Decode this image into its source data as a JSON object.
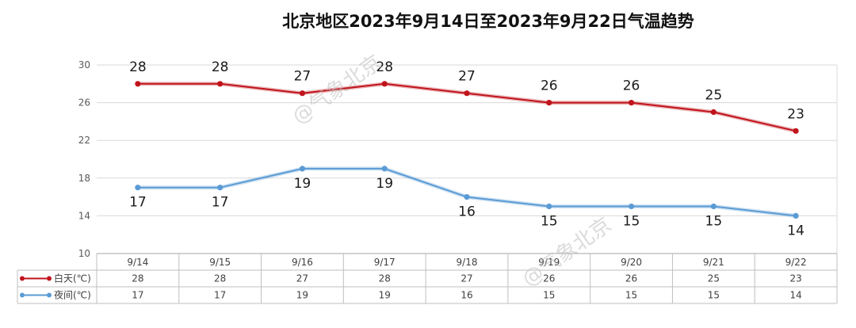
{
  "chart_data": {
    "type": "line",
    "title": "北京地区2023年9月14日至2023年9月22日气温趋势",
    "categories": [
      "9/14",
      "9/15",
      "9/16",
      "9/17",
      "9/18",
      "9/19",
      "9/20",
      "9/21",
      "9/22"
    ],
    "series": [
      {
        "name": "白天(℃)",
        "color": "#c0141c",
        "values": [
          28,
          28,
          27,
          28,
          27,
          26,
          26,
          25,
          23
        ]
      },
      {
        "name": "夜间(℃)",
        "color": "#5b9bd5",
        "values": [
          17,
          17,
          19,
          19,
          16,
          15,
          15,
          15,
          14
        ]
      }
    ],
    "ylim": [
      10,
      30
    ],
    "yticks": [
      "10",
      "14",
      "18",
      "22",
      "26",
      "30"
    ],
    "grid": true,
    "legend": "data-table"
  },
  "watermark": "@气象北京"
}
